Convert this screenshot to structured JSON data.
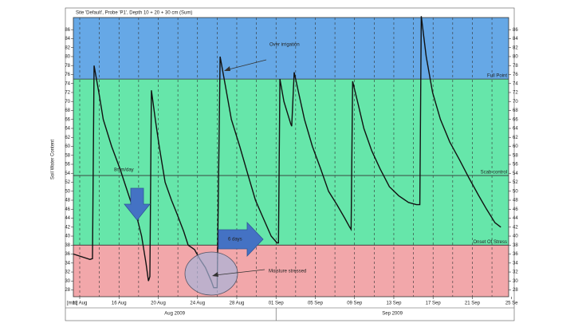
{
  "chart_data": {
    "type": "line",
    "title": "Site 'Default', Probe 'P1', Depth 10 + 20 + 30 cm (Sum)",
    "y_label": "Soil Water Content",
    "x_unit_label": "[mm]",
    "months": [
      "Aug 2009",
      "Sep 2009"
    ],
    "xlim": [
      -0.65,
      43.7
    ],
    "xticks": [
      {
        "value": 0,
        "label": "12 Aug"
      },
      {
        "value": 4,
        "label": "16 Aug"
      },
      {
        "value": 8,
        "label": "20 Aug"
      },
      {
        "value": 12,
        "label": "24 Aug"
      },
      {
        "value": 16,
        "label": "28 Aug"
      },
      {
        "value": 20,
        "label": "01 Sep"
      },
      {
        "value": 24,
        "label": "05 Sep"
      },
      {
        "value": 28,
        "label": "09 Sep"
      },
      {
        "value": 32,
        "label": "13 Sep"
      },
      {
        "value": 36,
        "label": "17 Sep"
      },
      {
        "value": 40,
        "label": "21 Sep"
      },
      {
        "value": 44,
        "label": "25 Se"
      }
    ],
    "x_minor_ticks": [
      2,
      6,
      10,
      14,
      18,
      22,
      26,
      30,
      34,
      38,
      42
    ],
    "ylim": [
      26.5,
      88.7
    ],
    "yticks": [
      28,
      30,
      32,
      34,
      36,
      38,
      40,
      42,
      44,
      46,
      48,
      50,
      52,
      54,
      56,
      58,
      60,
      62,
      64,
      66,
      68,
      70,
      72,
      74,
      76,
      78,
      80,
      82,
      84,
      86
    ],
    "thresholds": [
      {
        "label": "Full Point",
        "value": 75
      },
      {
        "label": "Scab control",
        "value": 53.5
      },
      {
        "label": "Onset Of Stress",
        "value": 38
      }
    ],
    "band_colors": [
      "#66a8e6",
      "#66e6aa",
      "#f2a7aa"
    ],
    "annotations": [
      "Over irrigation",
      "Moisture stressed",
      "8mm/day",
      "6 days"
    ],
    "series": [
      {
        "color": "#111111",
        "x": [
          -0.65,
          1.05,
          1.3,
          1.46,
          1.95,
          2.4,
          3.25,
          4.1,
          4.7,
          5.3,
          5.85,
          6.3,
          6.75,
          7,
          7.15,
          7.3,
          7.7,
          8.1,
          8.7,
          9.35,
          9.9,
          10.6,
          11.05,
          11.7,
          12.2,
          12.8,
          13.4,
          13.65,
          14,
          14.3,
          14.8,
          15.45,
          16.3,
          17.1,
          17.9,
          18.7,
          19.5,
          20.1,
          20.25,
          20.4,
          20.8,
          21.5,
          21.6,
          21.85,
          22.3,
          22.9,
          23.7,
          24.55,
          25.35,
          26.2,
          27,
          27.5,
          27.65,
          27.8,
          28.3,
          28.95,
          29.75,
          30.6,
          31.55,
          32.5,
          33.5,
          34.3,
          34.65,
          34.8,
          35.3,
          35.95,
          36.75,
          37.7,
          38.7,
          39.65,
          40.65,
          41.45,
          42.3,
          42.9
        ],
        "values": [
          36,
          34.8,
          35,
          78,
          72,
          66,
          60,
          55,
          51,
          47,
          44,
          40,
          34,
          30,
          31,
          72.5,
          66,
          60,
          52,
          48,
          45,
          41,
          38,
          37,
          35,
          33,
          30,
          28.5,
          28.5,
          80,
          74,
          66,
          60,
          54,
          48,
          44,
          40,
          38.5,
          38.5,
          75,
          70,
          65,
          64.5,
          76.5,
          72,
          66,
          60,
          55,
          50,
          47,
          44,
          42,
          41.5,
          74.5,
          70,
          64,
          59,
          55,
          51,
          49,
          47.5,
          47,
          47,
          89,
          80,
          72,
          66,
          61,
          57,
          53,
          49,
          46,
          43,
          42
        ]
      }
    ]
  }
}
